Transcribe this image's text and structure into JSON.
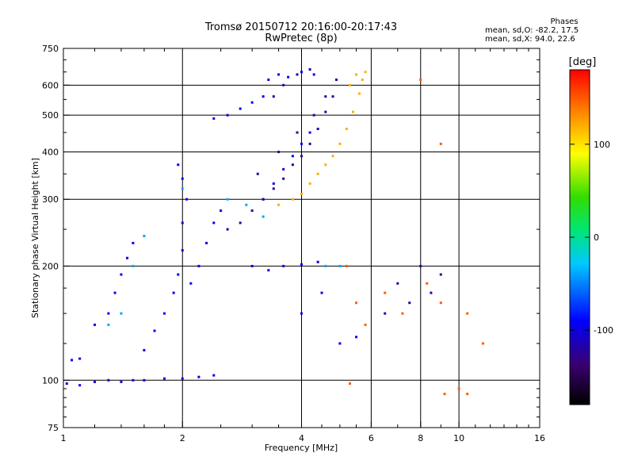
{
  "title_line1": "Tromsø 20150712 20:16:00-20:17:43",
  "title_line2": "RwPretec (8p)",
  "phases": {
    "heading": "Phases",
    "o_line": "mean, sd,O:  -82.2, 17.5",
    "x_line": "mean, sd,X:  94.0, 22.6"
  },
  "colorbar": {
    "label": "[deg]",
    "range": [
      -180,
      180
    ],
    "ticks": [
      100,
      0,
      -100
    ],
    "tick_labels": [
      "100",
      "0",
      "-100"
    ]
  },
  "chart_data": {
    "type": "scatter",
    "xlabel": "Frequency [MHz]",
    "ylabel": "Stationary phase Virtual Height [km]",
    "xscale": "log",
    "yscale": "log",
    "xlim": [
      1,
      16
    ],
    "ylim": [
      75,
      750
    ],
    "xticks": [
      1,
      2,
      4,
      6,
      8,
      10,
      16
    ],
    "xtick_labels": [
      "1",
      "2",
      "4",
      "6",
      "8",
      "10",
      "16"
    ],
    "yticks": [
      75,
      100,
      200,
      300,
      400,
      500,
      600,
      750
    ],
    "ytick_labels": [
      "75",
      "100",
      "200",
      "300",
      "400",
      "500",
      "600",
      "750"
    ],
    "grid": true,
    "series": [
      {
        "color_value": -95,
        "points": [
          [
            1.02,
            98
          ],
          [
            1.1,
            97
          ],
          [
            1.2,
            99
          ],
          [
            1.3,
            100
          ],
          [
            1.4,
            99
          ],
          [
            1.5,
            100
          ],
          [
            1.6,
            100
          ],
          [
            1.8,
            101
          ],
          [
            2.0,
            101
          ],
          [
            2.2,
            102
          ],
          [
            2.4,
            103
          ],
          [
            1.05,
            113
          ],
          [
            1.1,
            114
          ],
          [
            1.2,
            140
          ],
          [
            1.3,
            150
          ],
          [
            1.35,
            170
          ],
          [
            1.4,
            190
          ],
          [
            1.45,
            210
          ],
          [
            1.5,
            230
          ],
          [
            1.6,
            120
          ],
          [
            1.7,
            135
          ],
          [
            1.8,
            150
          ],
          [
            1.9,
            170
          ],
          [
            1.95,
            190
          ],
          [
            2.0,
            220
          ],
          [
            2.0,
            260
          ],
          [
            2.05,
            300
          ],
          [
            2.0,
            340
          ],
          [
            1.95,
            370
          ],
          [
            2.1,
            180
          ],
          [
            2.2,
            200
          ],
          [
            2.3,
            230
          ],
          [
            2.4,
            260
          ],
          [
            2.5,
            280
          ],
          [
            2.4,
            490
          ],
          [
            2.6,
            500
          ],
          [
            2.8,
            520
          ],
          [
            3.0,
            540
          ],
          [
            3.2,
            560
          ],
          [
            3.3,
            620
          ],
          [
            3.5,
            640
          ],
          [
            3.7,
            630
          ],
          [
            4.0,
            650
          ],
          [
            4.3,
            640
          ],
          [
            3.2,
            300
          ],
          [
            3.4,
            330
          ],
          [
            3.6,
            360
          ],
          [
            3.8,
            390
          ],
          [
            4.0,
            420
          ],
          [
            4.2,
            450
          ],
          [
            3.0,
            200
          ],
          [
            3.3,
            195
          ],
          [
            3.6,
            200
          ],
          [
            4.0,
            202
          ],
          [
            4.4,
            205
          ],
          [
            4.0,
            150
          ],
          [
            4.5,
            170
          ],
          [
            5.0,
            125
          ],
          [
            5.5,
            130
          ]
        ]
      },
      {
        "color_value": -125,
        "points": [
          [
            2.6,
            250
          ],
          [
            2.8,
            260
          ],
          [
            3.0,
            280
          ],
          [
            3.2,
            300
          ],
          [
            3.4,
            320
          ],
          [
            3.6,
            340
          ],
          [
            3.8,
            370
          ],
          [
            4.0,
            390
          ],
          [
            4.2,
            420
          ],
          [
            4.4,
            460
          ],
          [
            4.6,
            510
          ],
          [
            4.8,
            560
          ],
          [
            3.1,
            350
          ],
          [
            3.5,
            400
          ],
          [
            3.9,
            450
          ],
          [
            4.3,
            500
          ],
          [
            4.6,
            560
          ],
          [
            4.9,
            620
          ],
          [
            3.4,
            560
          ],
          [
            3.6,
            600
          ],
          [
            3.9,
            640
          ],
          [
            4.2,
            660
          ],
          [
            6.5,
            150
          ],
          [
            7.0,
            180
          ],
          [
            7.5,
            160
          ],
          [
            8.0,
            200
          ],
          [
            8.5,
            170
          ],
          [
            9.0,
            190
          ]
        ]
      },
      {
        "color_value": 120,
        "points": [
          [
            3.5,
            290
          ],
          [
            3.8,
            300
          ],
          [
            4.0,
            310
          ],
          [
            4.2,
            330
          ],
          [
            4.4,
            350
          ],
          [
            4.6,
            370
          ],
          [
            4.8,
            390
          ],
          [
            5.0,
            420
          ],
          [
            5.2,
            460
          ],
          [
            5.4,
            510
          ],
          [
            5.6,
            570
          ],
          [
            5.7,
            620
          ],
          [
            5.8,
            650
          ],
          [
            5.5,
            640
          ],
          [
            5.3,
            600
          ]
        ]
      },
      {
        "color_value": 150,
        "points": [
          [
            5.2,
            200
          ],
          [
            5.5,
            160
          ],
          [
            5.8,
            140
          ],
          [
            6.5,
            170
          ],
          [
            7.2,
            150
          ],
          [
            8.3,
            180
          ],
          [
            9.0,
            160
          ],
          [
            10.5,
            150
          ],
          [
            11.5,
            125
          ],
          [
            5.3,
            98
          ],
          [
            9.2,
            92
          ],
          [
            10.0,
            95
          ],
          [
            10.5,
            92
          ],
          [
            8.0,
            620
          ],
          [
            9.0,
            420
          ]
        ]
      },
      {
        "color_value": -40,
        "points": [
          [
            1.3,
            140
          ],
          [
            1.4,
            150
          ],
          [
            1.5,
            200
          ],
          [
            1.6,
            240
          ],
          [
            2.0,
            320
          ],
          [
            2.6,
            300
          ],
          [
            2.9,
            290
          ],
          [
            3.2,
            270
          ],
          [
            5.0,
            200
          ],
          [
            4.6,
            200
          ]
        ]
      }
    ]
  }
}
